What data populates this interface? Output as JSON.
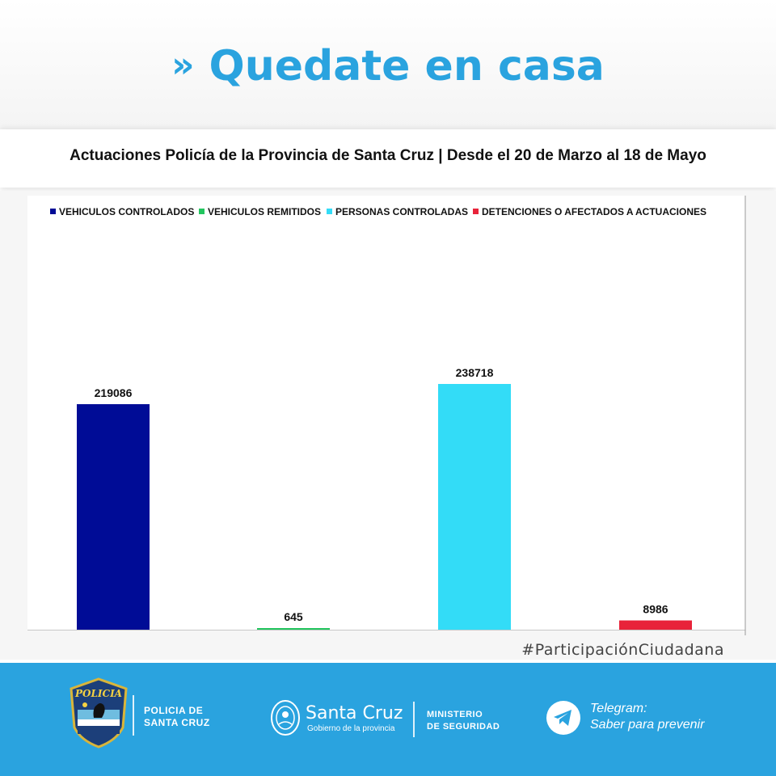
{
  "header": {
    "chevrons": "»",
    "title": "Quedate en casa"
  },
  "chart_title": "Actuaciones Policía de la Provincia de Santa Cruz | Desde el 20 de Marzo al 18 de Mayo",
  "chart_data": {
    "type": "bar",
    "categories": [
      "VEHICULOS CONTROLADOS",
      "VEHICULOS REMITIDOS",
      "PERSONAS CONTROLADAS",
      "DETENCIONES O AFECTADOS A ACTUACIONES"
    ],
    "values": [
      219086,
      645,
      238718,
      8986
    ],
    "colors": [
      "#000c96",
      "#22c55e",
      "#33dcf7",
      "#e8233a"
    ],
    "legend_position": "top",
    "grid": false,
    "ylim": [
      0,
      245000
    ]
  },
  "hashtag": "#ParticipaciónCiudadana",
  "footer": {
    "police_logo_text": "POLICIA",
    "police_line1": "POLICIA DE",
    "police_line2": "SANTA CRUZ",
    "gov_name": "Santa Cruz",
    "gov_sub": "Gobierno de la provincia",
    "ministry_line1": "MINISTERIO",
    "ministry_line2": "DE SEGURIDAD",
    "telegram_line1": "Telegram:",
    "telegram_line2": "Saber para prevenir"
  }
}
